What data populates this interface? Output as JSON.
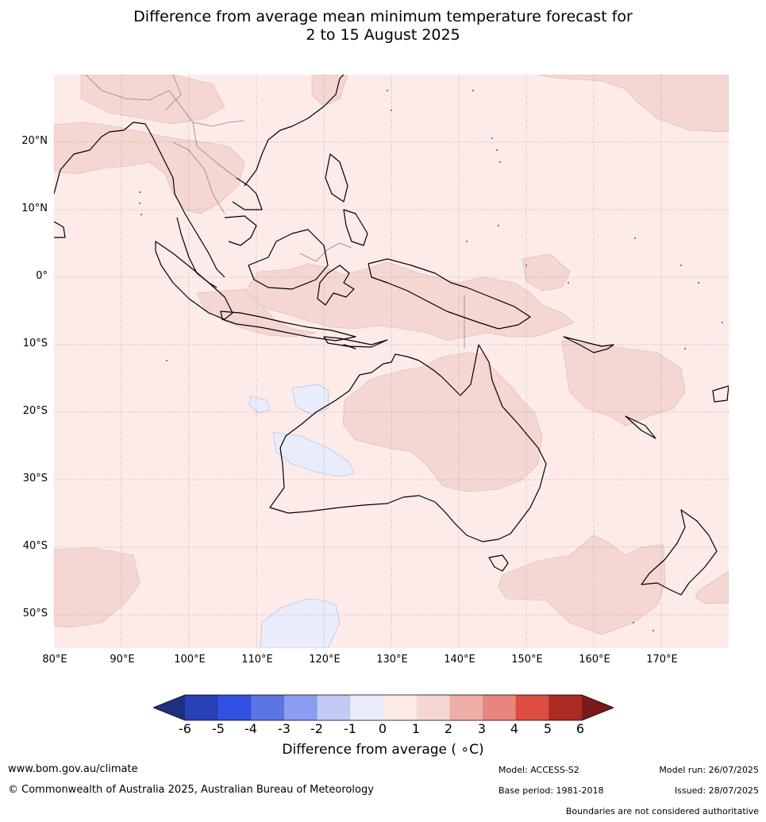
{
  "title": {
    "line1": "Difference from average mean minimum temperature forecast for",
    "line2": "2 to 15 August 2025"
  },
  "map": {
    "lon_range": [
      80,
      180
    ],
    "lat_range": [
      -55,
      30
    ],
    "lat_labels": [
      "20°N",
      "10°N",
      "0°",
      "10°S",
      "20°S",
      "30°S",
      "40°S",
      "50°S"
    ],
    "lon_labels": [
      "80°E",
      "90°E",
      "100°E",
      "110°E",
      "120°E",
      "130°E",
      "140°E",
      "150°E",
      "160°E",
      "170°E"
    ],
    "colors": {
      "background_0_to_1": "#fcebe8",
      "band_1_to_2": "#f5d6d2",
      "band_minus1_to_0": "#e9edfb",
      "coast": "#000000",
      "borders": "#888888"
    }
  },
  "colorbar": {
    "ticks": [
      "-6",
      "-5",
      "-4",
      "-3",
      "-2",
      "-1",
      "0",
      "1",
      "2",
      "3",
      "4",
      "5",
      "6"
    ],
    "colors": [
      "#1f2f80",
      "#2740b5",
      "#3151e0",
      "#5b75e5",
      "#8a9df0",
      "#c2caf5",
      "#e9edfb",
      "#fcebe8",
      "#f5d6d2",
      "#efaea8",
      "#e8857d",
      "#dc4c40",
      "#ab2a22",
      "#7a1b19"
    ],
    "label": "Difference from average ( ∘C)"
  },
  "footer": {
    "website": "www.bom.gov.au/climate",
    "copyright": "© Commonwealth of Australia 2025, Australian Bureau of Meteorology",
    "model": "Model: ACCESS-S2",
    "model_run": "Model run: 26/07/2025",
    "base_period": "Base period: 1981-2018",
    "issued": "Issued: 28/07/2025",
    "disclaimer": "Boundaries are not considered authoritative"
  }
}
